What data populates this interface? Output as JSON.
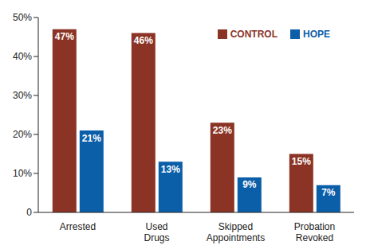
{
  "chart_data": {
    "type": "bar",
    "categories": [
      "Arrested",
      "Used Drugs",
      "Skipped Appointments",
      "Probation Revoked"
    ],
    "series": [
      {
        "name": "CONTROL",
        "color": "#8b3324",
        "values": [
          47,
          46,
          23,
          15
        ],
        "value_labels": [
          "47%",
          "46%",
          "23%",
          "15%"
        ]
      },
      {
        "name": "HOPE",
        "color": "#0b5ea8",
        "values": [
          21,
          13,
          9,
          7
        ],
        "value_labels": [
          "21%",
          "13%",
          "9%",
          "7%"
        ]
      }
    ],
    "ylim": [
      0,
      50
    ],
    "yticks": [
      0,
      {
        "value": 10,
        "label": "10%"
      },
      {
        "value": 20,
        "label": "20%"
      },
      {
        "value": 30,
        "label": "30%"
      },
      {
        "value": 40,
        "label": "40%"
      },
      {
        "value": 50,
        "label": "50%"
      }
    ],
    "grid": false,
    "legend": "top-right",
    "data_labels": true
  }
}
